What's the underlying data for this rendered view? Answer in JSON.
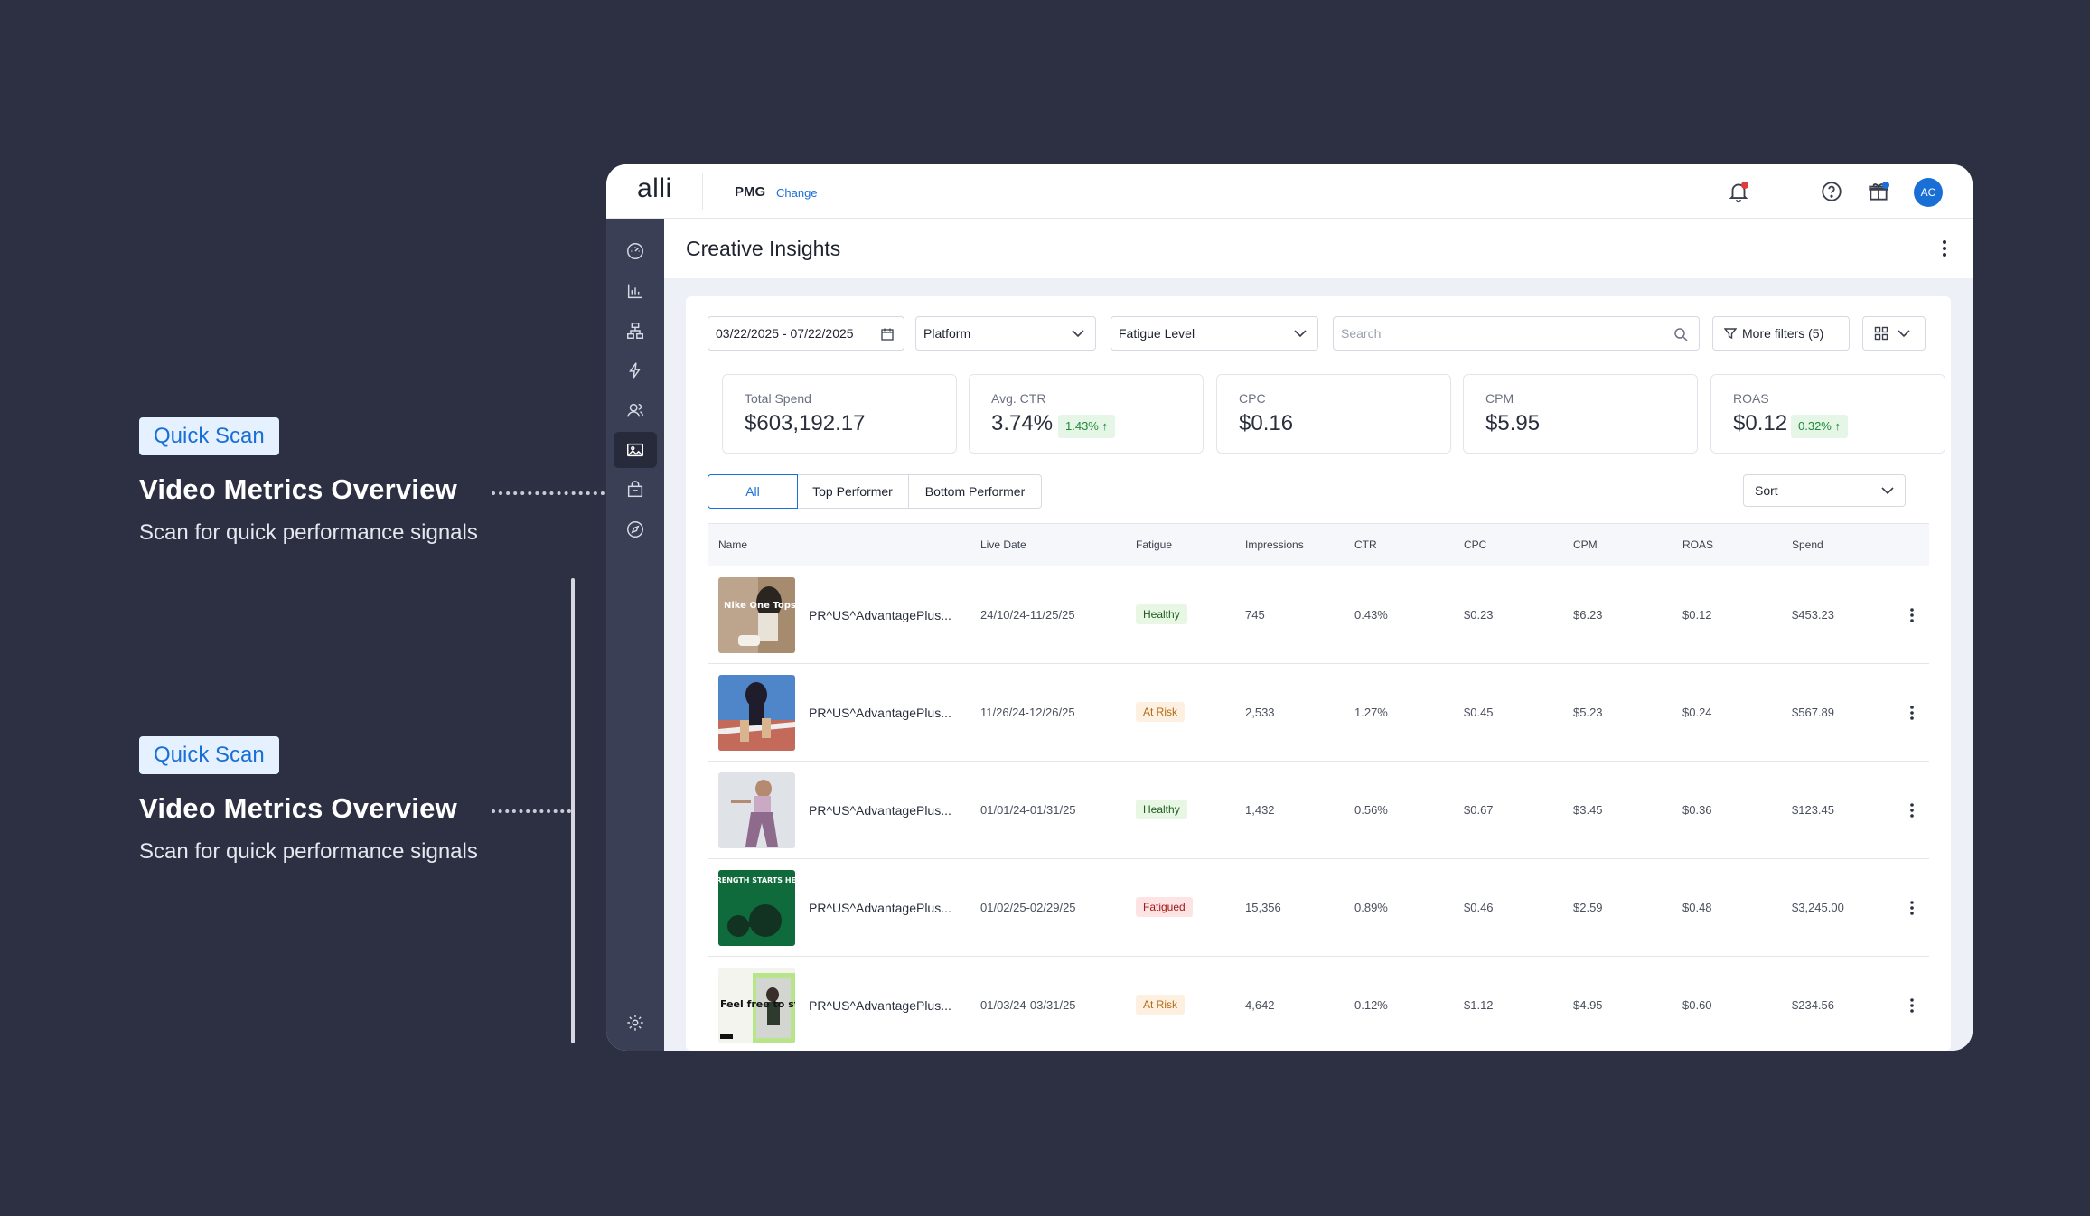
{
  "annotations": [
    {
      "badge": "Quick Scan",
      "title": "Video Metrics Overview",
      "description": "Scan for quick performance signals"
    },
    {
      "badge": "Quick Scan",
      "title": "Video Metrics Overview",
      "description": "Scan for quick performance signals"
    }
  ],
  "topbar": {
    "logo": "alli",
    "org": "PMG",
    "change": "Change",
    "avatar": "AC"
  },
  "colors": {
    "accent": "#1a6fd6",
    "background": "#2d3042",
    "sidebar": "#3a3f55",
    "notification_dot": "#e03b3b"
  },
  "sidebar": {
    "items": [
      {
        "icon": "dashboard-gauge-icon"
      },
      {
        "icon": "bar-chart-icon"
      },
      {
        "icon": "hierarchy-icon"
      },
      {
        "icon": "lightning-icon"
      },
      {
        "icon": "audience-icon"
      },
      {
        "icon": "image-icon",
        "active": true
      },
      {
        "icon": "shopping-bag-icon"
      },
      {
        "icon": "compass-icon"
      }
    ],
    "footer_icon": "gear-icon"
  },
  "page": {
    "title": "Creative Insights"
  },
  "filters": {
    "date_range": "03/22/2025 - 07/22/2025",
    "platform": "Platform",
    "fatigue": "Fatigue Level",
    "search_placeholder": "Search",
    "more_filters": "More filters (5)"
  },
  "kpis": [
    {
      "label": "Total Spend",
      "value": "$603,192.17",
      "change": ""
    },
    {
      "label": "Avg. CTR",
      "value": "3.74%",
      "change": "1.43%"
    },
    {
      "label": "CPC",
      "value": "$0.16",
      "change": ""
    },
    {
      "label": "CPM",
      "value": "$5.95",
      "change": ""
    },
    {
      "label": "ROAS",
      "value": "$0.12",
      "change": "0.32%"
    }
  ],
  "segments": [
    "All",
    "Top Performer",
    "Bottom Performer"
  ],
  "sort_label": "Sort",
  "table": {
    "headers": [
      "Name",
      "Live Date",
      "Fatigue",
      "Impressions",
      "CTR",
      "CPC",
      "CPM",
      "ROAS",
      "Spend"
    ],
    "rows": [
      {
        "name": "PR^US^AdvantagePlus...",
        "date": "24/10/24-11/25/25",
        "fatigue": "Healthy",
        "impressions": "745",
        "ctr": "0.43%",
        "cpc": "$0.23",
        "cpm": "$6.23",
        "roas": "$0.12",
        "spend": "$453.23",
        "thumb_text": "Nike One Tops"
      },
      {
        "name": "PR^US^AdvantagePlus...",
        "date": "11/26/24-12/26/25",
        "fatigue": "At Risk",
        "impressions": "2,533",
        "ctr": "1.27%",
        "cpc": "$0.45",
        "cpm": "$5.23",
        "roas": "$0.24",
        "spend": "$567.89",
        "thumb_text": ""
      },
      {
        "name": "PR^US^AdvantagePlus...",
        "date": "01/01/24-01/31/25",
        "fatigue": "Healthy",
        "impressions": "1,432",
        "ctr": "0.56%",
        "cpc": "$0.67",
        "cpm": "$3.45",
        "roas": "$0.36",
        "spend": "$123.45",
        "thumb_text": ""
      },
      {
        "name": "PR^US^AdvantagePlus...",
        "date": "01/02/25-02/29/25",
        "fatigue": "Fatigued",
        "impressions": "15,356",
        "ctr": "0.89%",
        "cpc": "$0.46",
        "cpm": "$2.59",
        "roas": "$0.48",
        "spend": "$3,245.00",
        "thumb_text": "STRENGTH STARTS HERE"
      },
      {
        "name": "PR^US^AdvantagePlus...",
        "date": "01/03/24-03/31/25",
        "fatigue": "At Risk",
        "impressions": "4,642",
        "ctr": "0.12%",
        "cpc": "$1.12",
        "cpm": "$4.95",
        "roas": "$0.60",
        "spend": "$234.56",
        "thumb_text": "Feel free to stretch out"
      }
    ]
  }
}
